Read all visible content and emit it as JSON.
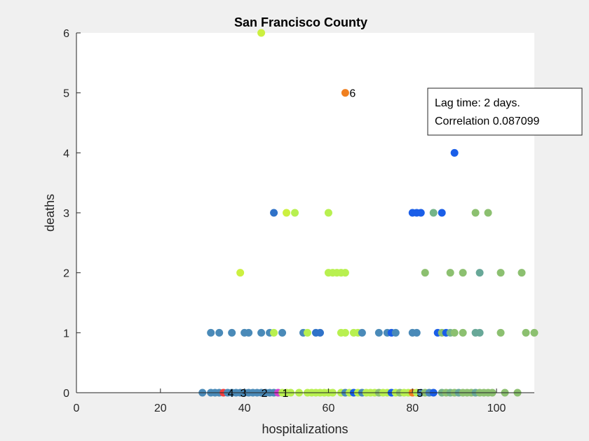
{
  "chart_data": {
    "type": "scatter",
    "title": "San Francisco County",
    "xlabel": "hospitalizations",
    "ylabel": "deaths",
    "xlim": [
      0,
      109
    ],
    "ylim": [
      0,
      6
    ],
    "xticks": [
      "0",
      "20",
      "40",
      "60",
      "80",
      "100"
    ],
    "yticks": [
      "0",
      "1",
      "2",
      "3",
      "4",
      "5",
      "6"
    ],
    "grid": false,
    "annotation": {
      "lines": [
        "Lag time: 2 days.",
        "Correlation 0.087099"
      ],
      "placement": "top-right"
    },
    "colors": {
      "steel": "#4a8ab8",
      "blue": "#1a5ee8",
      "midblue": "#2f72c8",
      "lime": "#b8f050",
      "yellowgreen": "#ccf040",
      "green": "#8cc070",
      "sage": "#74b488",
      "teal": "#68a898",
      "orange": "#f08020",
      "red": "#f04040",
      "magenta": "#d040d0"
    },
    "points": [
      {
        "x": 44,
        "y": 6,
        "c": "yellowgreen"
      },
      {
        "x": 64,
        "y": 5,
        "c": "orange"
      },
      {
        "x": 90,
        "y": 4,
        "c": "blue"
      },
      {
        "x": 47,
        "y": 3,
        "c": "midblue"
      },
      {
        "x": 50,
        "y": 3,
        "c": "yellowgreen"
      },
      {
        "x": 52,
        "y": 3,
        "c": "lime"
      },
      {
        "x": 60,
        "y": 3,
        "c": "lime"
      },
      {
        "x": 80,
        "y": 3,
        "c": "blue"
      },
      {
        "x": 81,
        "y": 3,
        "c": "blue"
      },
      {
        "x": 82,
        "y": 3,
        "c": "blue"
      },
      {
        "x": 85,
        "y": 3,
        "c": "sage"
      },
      {
        "x": 87,
        "y": 3,
        "c": "blue"
      },
      {
        "x": 95,
        "y": 3,
        "c": "green"
      },
      {
        "x": 98,
        "y": 3,
        "c": "green"
      },
      {
        "x": 39,
        "y": 2,
        "c": "yellowgreen"
      },
      {
        "x": 60,
        "y": 2,
        "c": "lime"
      },
      {
        "x": 61,
        "y": 2,
        "c": "lime"
      },
      {
        "x": 62,
        "y": 2,
        "c": "lime"
      },
      {
        "x": 63,
        "y": 2,
        "c": "lime"
      },
      {
        "x": 64,
        "y": 2,
        "c": "lime"
      },
      {
        "x": 83,
        "y": 2,
        "c": "green"
      },
      {
        "x": 89,
        "y": 2,
        "c": "green"
      },
      {
        "x": 92,
        "y": 2,
        "c": "green"
      },
      {
        "x": 96,
        "y": 2,
        "c": "teal"
      },
      {
        "x": 101,
        "y": 2,
        "c": "green"
      },
      {
        "x": 106,
        "y": 2,
        "c": "green"
      },
      {
        "x": 32,
        "y": 1,
        "c": "steel"
      },
      {
        "x": 34,
        "y": 1,
        "c": "steel"
      },
      {
        "x": 37,
        "y": 1,
        "c": "steel"
      },
      {
        "x": 40,
        "y": 1,
        "c": "steel"
      },
      {
        "x": 41,
        "y": 1,
        "c": "steel"
      },
      {
        "x": 44,
        "y": 1,
        "c": "steel"
      },
      {
        "x": 46,
        "y": 1,
        "c": "steel"
      },
      {
        "x": 47,
        "y": 1,
        "c": "lime"
      },
      {
        "x": 49,
        "y": 1,
        "c": "steel"
      },
      {
        "x": 54,
        "y": 1,
        "c": "steel"
      },
      {
        "x": 55,
        "y": 1,
        "c": "lime"
      },
      {
        "x": 57,
        "y": 1,
        "c": "midblue"
      },
      {
        "x": 58,
        "y": 1,
        "c": "midblue"
      },
      {
        "x": 63,
        "y": 1,
        "c": "lime"
      },
      {
        "x": 64,
        "y": 1,
        "c": "lime"
      },
      {
        "x": 66,
        "y": 1,
        "c": "lime"
      },
      {
        "x": 67,
        "y": 1,
        "c": "lime"
      },
      {
        "x": 68,
        "y": 1,
        "c": "steel"
      },
      {
        "x": 72,
        "y": 1,
        "c": "steel"
      },
      {
        "x": 74,
        "y": 1,
        "c": "steel"
      },
      {
        "x": 75,
        "y": 1,
        "c": "blue"
      },
      {
        "x": 76,
        "y": 1,
        "c": "steel"
      },
      {
        "x": 80,
        "y": 1,
        "c": "steel"
      },
      {
        "x": 81,
        "y": 1,
        "c": "steel"
      },
      {
        "x": 86,
        "y": 1,
        "c": "blue"
      },
      {
        "x": 87,
        "y": 1,
        "c": "green"
      },
      {
        "x": 88,
        "y": 1,
        "c": "blue"
      },
      {
        "x": 89,
        "y": 1,
        "c": "sage"
      },
      {
        "x": 90,
        "y": 1,
        "c": "green"
      },
      {
        "x": 92,
        "y": 1,
        "c": "green"
      },
      {
        "x": 95,
        "y": 1,
        "c": "teal"
      },
      {
        "x": 96,
        "y": 1,
        "c": "teal"
      },
      {
        "x": 101,
        "y": 1,
        "c": "green"
      },
      {
        "x": 107,
        "y": 1,
        "c": "green"
      },
      {
        "x": 109,
        "y": 1,
        "c": "green"
      },
      {
        "x": 30,
        "y": 0,
        "c": "steel"
      },
      {
        "x": 32,
        "y": 0,
        "c": "steel"
      },
      {
        "x": 33,
        "y": 0,
        "c": "steel"
      },
      {
        "x": 34,
        "y": 0,
        "c": "steel"
      },
      {
        "x": 35,
        "y": 0,
        "c": "red"
      },
      {
        "x": 36,
        "y": 0,
        "c": "steel"
      },
      {
        "x": 37,
        "y": 0,
        "c": "steel"
      },
      {
        "x": 38,
        "y": 0,
        "c": "steel"
      },
      {
        "x": 39,
        "y": 0,
        "c": "steel"
      },
      {
        "x": 40,
        "y": 0,
        "c": "steel"
      },
      {
        "x": 41,
        "y": 0,
        "c": "steel"
      },
      {
        "x": 42,
        "y": 0,
        "c": "steel"
      },
      {
        "x": 43,
        "y": 0,
        "c": "steel"
      },
      {
        "x": 44,
        "y": 0,
        "c": "steel"
      },
      {
        "x": 45,
        "y": 0,
        "c": "steel"
      },
      {
        "x": 46,
        "y": 0,
        "c": "steel"
      },
      {
        "x": 47,
        "y": 0,
        "c": "steel"
      },
      {
        "x": 48,
        "y": 0,
        "c": "magenta"
      },
      {
        "x": 49,
        "y": 0,
        "c": "lime"
      },
      {
        "x": 50,
        "y": 0,
        "c": "lime"
      },
      {
        "x": 51,
        "y": 0,
        "c": "lime"
      },
      {
        "x": 53,
        "y": 0,
        "c": "lime"
      },
      {
        "x": 55,
        "y": 0,
        "c": "lime"
      },
      {
        "x": 56,
        "y": 0,
        "c": "lime"
      },
      {
        "x": 57,
        "y": 0,
        "c": "lime"
      },
      {
        "x": 58,
        "y": 0,
        "c": "lime"
      },
      {
        "x": 59,
        "y": 0,
        "c": "lime"
      },
      {
        "x": 60,
        "y": 0,
        "c": "lime"
      },
      {
        "x": 61,
        "y": 0,
        "c": "lime"
      },
      {
        "x": 63,
        "y": 0,
        "c": "lime"
      },
      {
        "x": 64,
        "y": 0,
        "c": "steel"
      },
      {
        "x": 65,
        "y": 0,
        "c": "lime"
      },
      {
        "x": 66,
        "y": 0,
        "c": "blue"
      },
      {
        "x": 67,
        "y": 0,
        "c": "lime"
      },
      {
        "x": 68,
        "y": 0,
        "c": "steel"
      },
      {
        "x": 69,
        "y": 0,
        "c": "lime"
      },
      {
        "x": 70,
        "y": 0,
        "c": "lime"
      },
      {
        "x": 71,
        "y": 0,
        "c": "lime"
      },
      {
        "x": 72,
        "y": 0,
        "c": "green"
      },
      {
        "x": 73,
        "y": 0,
        "c": "lime"
      },
      {
        "x": 74,
        "y": 0,
        "c": "lime"
      },
      {
        "x": 75,
        "y": 0,
        "c": "blue"
      },
      {
        "x": 76,
        "y": 0,
        "c": "lime"
      },
      {
        "x": 77,
        "y": 0,
        "c": "green"
      },
      {
        "x": 78,
        "y": 0,
        "c": "lime"
      },
      {
        "x": 79,
        "y": 0,
        "c": "lime"
      },
      {
        "x": 80,
        "y": 0,
        "c": "orange"
      },
      {
        "x": 81,
        "y": 0,
        "c": "lime"
      },
      {
        "x": 82,
        "y": 0,
        "c": "steel"
      },
      {
        "x": 83,
        "y": 0,
        "c": "green"
      },
      {
        "x": 84,
        "y": 0,
        "c": "steel"
      },
      {
        "x": 85,
        "y": 0,
        "c": "blue"
      },
      {
        "x": 87,
        "y": 0,
        "c": "sage"
      },
      {
        "x": 88,
        "y": 0,
        "c": "green"
      },
      {
        "x": 89,
        "y": 0,
        "c": "sage"
      },
      {
        "x": 90,
        "y": 0,
        "c": "green"
      },
      {
        "x": 91,
        "y": 0,
        "c": "teal"
      },
      {
        "x": 92,
        "y": 0,
        "c": "green"
      },
      {
        "x": 93,
        "y": 0,
        "c": "green"
      },
      {
        "x": 94,
        "y": 0,
        "c": "green"
      },
      {
        "x": 95,
        "y": 0,
        "c": "teal"
      },
      {
        "x": 96,
        "y": 0,
        "c": "green"
      },
      {
        "x": 97,
        "y": 0,
        "c": "green"
      },
      {
        "x": 98,
        "y": 0,
        "c": "green"
      },
      {
        "x": 99,
        "y": 0,
        "c": "green"
      },
      {
        "x": 102,
        "y": 0,
        "c": "green"
      },
      {
        "x": 105,
        "y": 0,
        "c": "green"
      }
    ],
    "point_labels": [
      {
        "text": "6",
        "x": 65,
        "y": 5
      },
      {
        "text": "5",
        "x": 81,
        "y": 0
      },
      {
        "text": "4",
        "x": 36,
        "y": 0
      },
      {
        "text": "3",
        "x": 39,
        "y": 0
      },
      {
        "text": "2",
        "x": 44,
        "y": 0
      },
      {
        "text": "1",
        "x": 49,
        "y": 0
      }
    ]
  }
}
